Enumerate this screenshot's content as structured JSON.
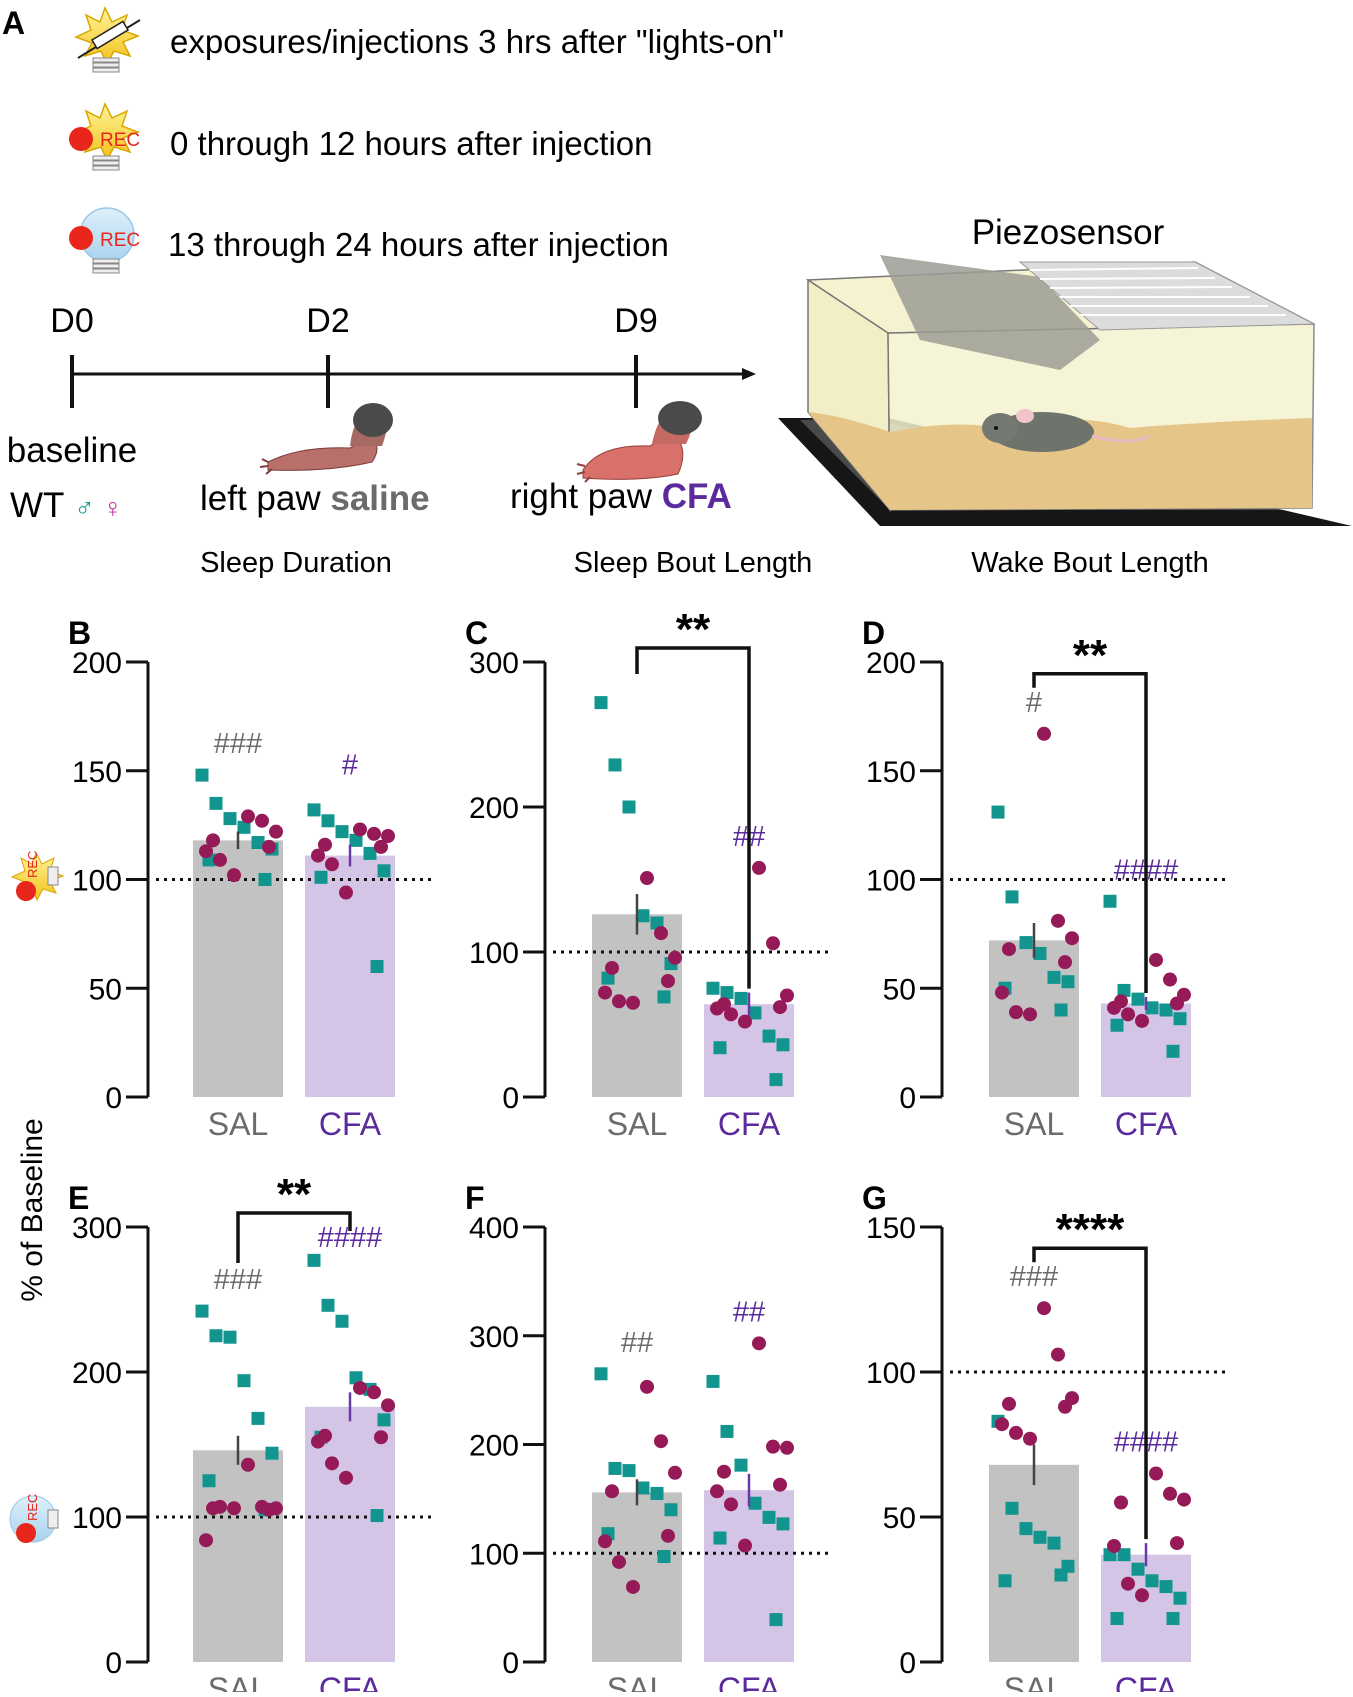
{
  "panel_a": {
    "letter": "A",
    "legend": [
      {
        "icon": "syringe-lightbulb-icon",
        "text": "exposures/injections 3 hrs after \"lights-on\""
      },
      {
        "icon": "rec-lights-on-icon",
        "text": "0 through 12 hours after injection",
        "badge": "REC"
      },
      {
        "icon": "rec-lights-off-icon",
        "text": "13 through 24 hours after injection",
        "badge": "REC"
      }
    ],
    "timeline": {
      "days": [
        "D0",
        "D2",
        "D9"
      ],
      "baseline_label": "baseline",
      "wt_label": "WT",
      "male_symbol": "♂",
      "female_symbol": "♀",
      "saline_prefix": "left paw ",
      "saline_word": "saline",
      "cfa_prefix": "right paw ",
      "cfa_word": "CFA"
    },
    "apparatus_title": "Piezosensor"
  },
  "column_titles": [
    "Sleep Duration",
    "Sleep Bout Length",
    "Wake Bout Length"
  ],
  "y_axis_label": "% of Baseline",
  "row_icons": [
    {
      "name": "rec-lights-on-row-icon",
      "badge": "REC"
    },
    {
      "name": "rec-lights-off-row-icon",
      "badge": "REC"
    }
  ],
  "colors": {
    "sal_bar": "#c2c2c2",
    "cfa_bar": "#d4c4e6",
    "male": "#12948f",
    "female": "#961a57",
    "sal_text": "#6b6b6b",
    "cfa_text": "#5b2a9c",
    "sal_err": "#444444",
    "cfa_err": "#6a3aaa"
  },
  "chart_data": [
    {
      "panel": "B",
      "type": "bar",
      "title": "Sleep Duration",
      "ylabel": "% of Baseline",
      "ylim": [
        0,
        200
      ],
      "yticks": [
        0,
        50,
        100,
        150,
        200
      ],
      "baseline": 100,
      "categories": [
        "SAL",
        "CFA"
      ],
      "series": [
        {
          "name": "SAL",
          "mean": 118,
          "sem": 4,
          "annotation": "###",
          "male": [
            148,
            135,
            128,
            124,
            117,
            114,
            109,
            100
          ],
          "female": [
            129,
            127,
            122,
            118,
            115,
            113,
            109,
            102
          ]
        },
        {
          "name": "CFA",
          "mean": 111,
          "sem": 5,
          "annotation": "#",
          "male": [
            132,
            127,
            122,
            118,
            112,
            104,
            101,
            60
          ],
          "female": [
            123,
            121,
            120,
            116,
            115,
            111,
            107,
            94
          ]
        }
      ],
      "comparison": null
    },
    {
      "panel": "C",
      "type": "bar",
      "title": "Sleep Bout Length",
      "ylabel": "% of Baseline",
      "ylim": [
        0,
        300
      ],
      "yticks": [
        0,
        100,
        200,
        300
      ],
      "baseline": 100,
      "categories": [
        "SAL",
        "CFA"
      ],
      "series": [
        {
          "name": "SAL",
          "mean": 126,
          "sem": 14,
          "annotation": "",
          "male": [
            272,
            229,
            200,
            125,
            120,
            92,
            82,
            69
          ],
          "female": [
            151,
            113,
            96,
            89,
            80,
            72,
            66,
            65
          ]
        },
        {
          "name": "CFA",
          "mean": 64,
          "sem": 8,
          "annotation": "##",
          "male": [
            75,
            72,
            68,
            58,
            42,
            36,
            34,
            12
          ],
          "female": [
            158,
            106,
            70,
            64,
            62,
            61,
            57,
            52
          ]
        }
      ],
      "comparison": {
        "between": [
          "SAL",
          "CFA"
        ],
        "label": "**"
      }
    },
    {
      "panel": "D",
      "type": "bar",
      "title": "Wake Bout Length",
      "ylabel": "% of Baseline",
      "ylim": [
        0,
        200
      ],
      "yticks": [
        0,
        50,
        100,
        150,
        200
      ],
      "baseline": 100,
      "categories": [
        "SAL",
        "CFA"
      ],
      "series": [
        {
          "name": "SAL",
          "mean": 72,
          "sem": 8,
          "annotation": "#",
          "male": [
            131,
            92,
            71,
            66,
            55,
            53,
            50,
            40
          ],
          "female": [
            167,
            81,
            73,
            68,
            62,
            48,
            39,
            38
          ]
        },
        {
          "name": "CFA",
          "mean": 43,
          "sem": 3,
          "annotation": "####",
          "male": [
            90,
            49,
            45,
            41,
            40,
            36,
            33,
            21
          ],
          "female": [
            63,
            54,
            47,
            44,
            43,
            41,
            38,
            35
          ]
        }
      ],
      "comparison": {
        "between": [
          "SAL",
          "CFA"
        ],
        "label": "**"
      }
    },
    {
      "panel": "E",
      "type": "bar",
      "title": "Sleep Duration",
      "ylabel": "% of Baseline",
      "ylim": [
        0,
        300
      ],
      "yticks": [
        0,
        100,
        200,
        300
      ],
      "baseline": 100,
      "categories": [
        "SAL",
        "CFA"
      ],
      "series": [
        {
          "name": "SAL",
          "mean": 146,
          "sem": 10,
          "annotation": "###",
          "male": [
            242,
            225,
            224,
            194,
            168,
            144,
            125,
            105
          ],
          "female": [
            136,
            107,
            106,
            106,
            105,
            84,
            107,
            106
          ]
        },
        {
          "name": "CFA",
          "mean": 176,
          "sem": 10,
          "annotation": "####",
          "male": [
            277,
            246,
            235,
            196,
            188,
            167,
            155,
            101
          ],
          "female": [
            189,
            186,
            177,
            156,
            155,
            152,
            137,
            127
          ]
        }
      ],
      "comparison": {
        "between": [
          "SAL",
          "CFA"
        ],
        "label": "**"
      }
    },
    {
      "panel": "F",
      "type": "bar",
      "title": "Sleep Bout Length",
      "ylabel": "% of Baseline",
      "ylim": [
        0,
        400
      ],
      "yticks": [
        0,
        100,
        200,
        300,
        400
      ],
      "baseline": 100,
      "categories": [
        "SAL",
        "CFA"
      ],
      "series": [
        {
          "name": "SAL",
          "mean": 156,
          "sem": 12,
          "annotation": "##",
          "male": [
            265,
            178,
            176,
            160,
            155,
            140,
            118,
            97
          ],
          "female": [
            253,
            203,
            174,
            157,
            116,
            111,
            92,
            69
          ]
        },
        {
          "name": "CFA",
          "mean": 158,
          "sem": 15,
          "annotation": "##",
          "male": [
            258,
            212,
            181,
            146,
            133,
            127,
            114,
            39
          ],
          "female": [
            293,
            198,
            197,
            175,
            163,
            157,
            145,
            107
          ]
        }
      ],
      "comparison": null
    },
    {
      "panel": "G",
      "type": "bar",
      "title": "Wake Bout Length",
      "ylabel": "% of Baseline",
      "ylim": [
        0,
        150
      ],
      "yticks": [
        0,
        50,
        100,
        150
      ],
      "baseline": 100,
      "categories": [
        "SAL",
        "CFA"
      ],
      "series": [
        {
          "name": "SAL",
          "mean": 68,
          "sem": 7,
          "annotation": "###",
          "male": [
            83,
            53,
            46,
            43,
            41,
            33,
            28,
            30
          ],
          "female": [
            122,
            106,
            91,
            89,
            88,
            82,
            79,
            77
          ]
        },
        {
          "name": "CFA",
          "mean": 37,
          "sem": 4,
          "annotation": "####",
          "male": [
            37,
            37,
            32,
            28,
            26,
            22,
            15,
            15
          ],
          "female": [
            65,
            58,
            56,
            55,
            41,
            40,
            27,
            23
          ]
        }
      ],
      "comparison": {
        "between": [
          "SAL",
          "CFA"
        ],
        "label": "****"
      }
    }
  ]
}
